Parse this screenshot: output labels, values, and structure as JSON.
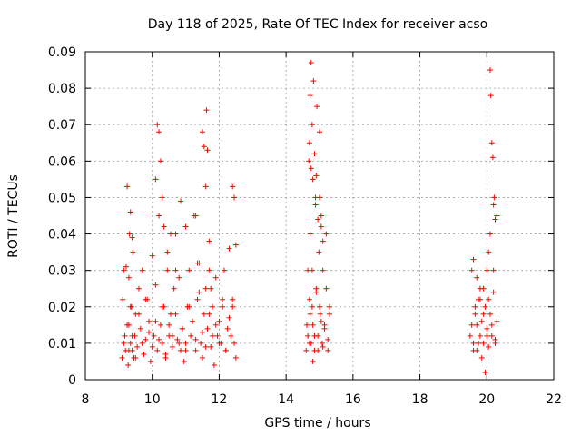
{
  "chart_data": {
    "type": "scatter",
    "title": "Day 118 of 2025, Rate Of TEC Index for receiver acso",
    "xlabel": "GPS time / hours",
    "ylabel": "ROTI / TECUs",
    "xlim": [
      8,
      22
    ],
    "ylim": [
      0,
      0.09
    ],
    "xticks": [
      "8",
      "10",
      "12",
      "14",
      "16",
      "18",
      "20",
      "22"
    ],
    "yticks": [
      "0",
      "0.01",
      "0.02",
      "0.03",
      "0.04",
      "0.05",
      "0.06",
      "0.07",
      "0.08",
      "0.09"
    ],
    "grid": true,
    "marker": "+",
    "color": "#ff0000",
    "series": [
      {
        "x": [
          9.1,
          9.12,
          9.15,
          9.18,
          9.2,
          9.22,
          9.25,
          9.28,
          9.3,
          9.32,
          9.35,
          9.38,
          9.4,
          9.42,
          9.45,
          9.48,
          9.5,
          9.55,
          9.6,
          9.65,
          9.7,
          9.75,
          9.8,
          9.85,
          9.9,
          9.95,
          10.0,
          10.05,
          10.1,
          10.15,
          10.2,
          10.25,
          10.3,
          10.35,
          10.4,
          10.45,
          10.5,
          10.55,
          10.6,
          10.65,
          10.7,
          10.75,
          10.8,
          10.85,
          10.9,
          10.95,
          11.0,
          11.05,
          11.1,
          11.15,
          11.2,
          11.25,
          11.3,
          11.35,
          11.4,
          11.45,
          11.5,
          11.55,
          11.6,
          11.65,
          11.7,
          11.75,
          11.8,
          11.85,
          11.9,
          11.95,
          12.0,
          12.05,
          12.1,
          12.15,
          12.2,
          12.25,
          12.3,
          12.35,
          12.4,
          12.45,
          12.5,
          9.15,
          9.25,
          9.3,
          9.35,
          9.4,
          9.5,
          9.6,
          9.7,
          9.8,
          9.9,
          10.0,
          10.1,
          10.2,
          10.3,
          10.4,
          10.5,
          10.6,
          10.7,
          10.8,
          10.9,
          11.0,
          11.1,
          11.2,
          11.3,
          11.4,
          11.5,
          11.6,
          11.7,
          11.8,
          11.9,
          12.0,
          12.1,
          12.2,
          12.3,
          12.4,
          9.3,
          9.35,
          9.4,
          10.1,
          10.15,
          10.2,
          10.25,
          10.3,
          10.35,
          10.45,
          10.55,
          10.7,
          10.85,
          11.0,
          11.3,
          11.35,
          11.5,
          11.55,
          11.6,
          11.62,
          11.65,
          11.7,
          11.75,
          12.4,
          12.45,
          12.5,
          14.6,
          14.62,
          14.65,
          14.68,
          14.7,
          14.72,
          14.75,
          14.78,
          14.8,
          14.82,
          14.85,
          14.88,
          14.9,
          14.92,
          14.95,
          14.98,
          15.0,
          15.02,
          15.05,
          15.08,
          15.1,
          15.15,
          15.2,
          15.25,
          15.3,
          14.65,
          14.7,
          14.72,
          14.75,
          14.78,
          14.8,
          14.85,
          14.9,
          14.95,
          15.0,
          15.05,
          15.1,
          15.15,
          15.2,
          15.25,
          15.3,
          14.7,
          14.72,
          14.75,
          14.78,
          14.8,
          14.85,
          14.88,
          14.9,
          14.95,
          15.0,
          15.05,
          15.1,
          19.5,
          19.55,
          19.6,
          19.65,
          19.7,
          19.75,
          19.8,
          19.85,
          19.9,
          19.95,
          20.0,
          20.05,
          20.1,
          20.15,
          20.2,
          20.25,
          20.3,
          19.55,
          19.6,
          19.65,
          19.7,
          19.75,
          19.8,
          19.85,
          19.9,
          19.95,
          20.0,
          20.05,
          20.1,
          20.15,
          20.2,
          20.25,
          20.3,
          19.6,
          19.7,
          19.8,
          19.9,
          20.0,
          20.05,
          20.1,
          20.12,
          20.15,
          20.18,
          20.2,
          20.22,
          20.25
        ],
        "y": [
          0.006,
          0.022,
          0.03,
          0.012,
          0.008,
          0.031,
          0.053,
          0.004,
          0.015,
          0.04,
          0.01,
          0.02,
          0.008,
          0.035,
          0.006,
          0.012,
          0.018,
          0.009,
          0.025,
          0.014,
          0.03,
          0.007,
          0.011,
          0.022,
          0.016,
          0.005,
          0.034,
          0.012,
          0.026,
          0.008,
          0.045,
          0.015,
          0.01,
          0.02,
          0.006,
          0.03,
          0.012,
          0.018,
          0.009,
          0.025,
          0.04,
          0.011,
          0.028,
          0.008,
          0.014,
          0.005,
          0.01,
          0.02,
          0.03,
          0.012,
          0.016,
          0.045,
          0.008,
          0.022,
          0.032,
          0.01,
          0.006,
          0.018,
          0.025,
          0.014,
          0.038,
          0.009,
          0.02,
          0.004,
          0.028,
          0.012,
          0.016,
          0.01,
          0.022,
          0.03,
          0.008,
          0.014,
          0.036,
          0.012,
          0.02,
          0.01,
          0.006,
          0.01,
          0.015,
          0.008,
          0.02,
          0.012,
          0.006,
          0.018,
          0.01,
          0.022,
          0.013,
          0.009,
          0.016,
          0.011,
          0.02,
          0.007,
          0.015,
          0.012,
          0.018,
          0.01,
          0.014,
          0.008,
          0.02,
          0.016,
          0.011,
          0.024,
          0.013,
          0.009,
          0.018,
          0.012,
          0.015,
          0.01,
          0.02,
          0.008,
          0.017,
          0.022,
          0.028,
          0.046,
          0.039,
          0.055,
          0.07,
          0.068,
          0.06,
          0.05,
          0.042,
          0.035,
          0.04,
          0.03,
          0.049,
          0.042,
          0.045,
          0.032,
          0.068,
          0.064,
          0.053,
          0.074,
          0.063,
          0.03,
          0.025,
          0.053,
          0.05,
          0.037,
          0.008,
          0.015,
          0.03,
          0.06,
          0.01,
          0.04,
          0.087,
          0.02,
          0.005,
          0.082,
          0.012,
          0.05,
          0.025,
          0.075,
          0.008,
          0.035,
          0.068,
          0.018,
          0.045,
          0.01,
          0.03,
          0.015,
          0.04,
          0.008,
          0.02,
          0.012,
          0.022,
          0.018,
          0.01,
          0.03,
          0.015,
          0.008,
          0.024,
          0.012,
          0.02,
          0.016,
          0.009,
          0.014,
          0.025,
          0.011,
          0.018,
          0.065,
          0.078,
          0.058,
          0.07,
          0.055,
          0.062,
          0.048,
          0.056,
          0.044,
          0.05,
          0.042,
          0.038,
          0.012,
          0.03,
          0.008,
          0.02,
          0.015,
          0.01,
          0.025,
          0.006,
          0.018,
          0.002,
          0.012,
          0.022,
          0.04,
          0.015,
          0.03,
          0.01,
          0.045,
          0.015,
          0.01,
          0.018,
          0.008,
          0.022,
          0.012,
          0.016,
          0.01,
          0.02,
          0.014,
          0.009,
          0.018,
          0.012,
          0.024,
          0.011,
          0.016,
          0.033,
          0.028,
          0.022,
          0.025,
          0.03,
          0.035,
          0.085,
          0.078,
          0.065,
          0.061,
          0.048,
          0.05,
          0.044
        ]
      }
    ]
  }
}
